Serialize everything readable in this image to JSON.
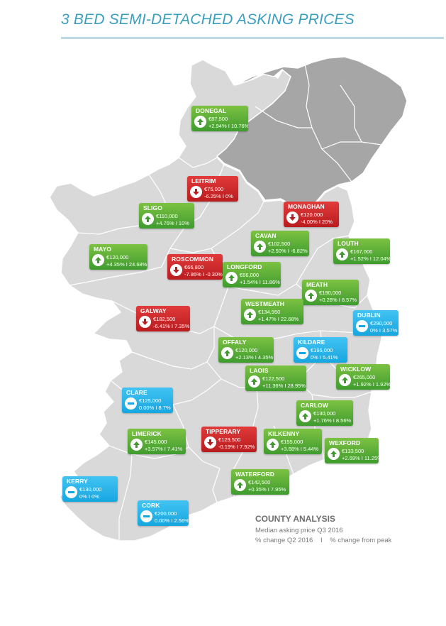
{
  "title": "3 BED SEMI-DETACHED ASKING PRICES",
  "legend": {
    "heading": "COUNTY ANALYSIS",
    "line1": "Median asking price Q3 2016",
    "line2a": "% change Q2 2016",
    "separator": "I",
    "line2b": "% change from peak"
  },
  "colors": {
    "increase": "#3f9b2f",
    "decrease": "#b91c1f",
    "no_change": "#17a6e0",
    "republic": "#d9d9d9",
    "northern_ireland": "#a6a6a6",
    "title": "#3a9fbf"
  },
  "icons": {
    "increase": "arrow-up-icon",
    "decrease": "arrow-down-icon",
    "no_change": "dash-icon"
  },
  "counties": [
    {
      "name": "DONEGAL",
      "price": "€87,500",
      "change": "+2.94% I 10.76%",
      "trend": "up"
    },
    {
      "name": "LEITRIM",
      "price": "€75,000",
      "change": "-6.25% I 0%",
      "trend": "down"
    },
    {
      "name": "SLIGO",
      "price": "€110,000",
      "change": "+4.76% I 10%",
      "trend": "up"
    },
    {
      "name": "MONAGHAN",
      "price": "€120,000",
      "change": "-4.00% I 20%",
      "trend": "down"
    },
    {
      "name": "CAVAN",
      "price": "€102,500",
      "change": "+2.50% I -6.82%",
      "trend": "up"
    },
    {
      "name": "LOUTH",
      "price": "€167,000",
      "change": "+1.52% I 12.04%",
      "trend": "up"
    },
    {
      "name": "MAYO",
      "price": "€120,000",
      "change": "+4.35% I 24.68%",
      "trend": "up"
    },
    {
      "name": "ROSCOMMON",
      "price": "€66,800",
      "change": "-7.86% I -0.30%",
      "trend": "down"
    },
    {
      "name": "LONGFORD",
      "price": "€66,000",
      "change": "+1.54% I 11.86%",
      "trend": "up"
    },
    {
      "name": "MEATH",
      "price": "€190,000",
      "change": "+0.28% I 8.57%",
      "trend": "up"
    },
    {
      "name": "WESTMEATH",
      "price": "€134,950",
      "change": "+1.47% I 22.68%",
      "trend": "up"
    },
    {
      "name": "GALWAY",
      "price": "€182,500",
      "change": "-6.41% I 7.35%",
      "trend": "down"
    },
    {
      "name": "DUBLIN",
      "price": "€290,000",
      "change": "0% I 3.57%",
      "trend": "flat"
    },
    {
      "name": "KILDARE",
      "price": "€195,000",
      "change": "0% I 5.41%",
      "trend": "flat"
    },
    {
      "name": "OFFALY",
      "price": "€120,000",
      "change": "+2.13% I 4.35%",
      "trend": "up"
    },
    {
      "name": "LAOIS",
      "price": "€122,500",
      "change": "+11.36% I 28.95%",
      "trend": "up"
    },
    {
      "name": "WICKLOW",
      "price": "€265,000",
      "change": "+1.92% I 1.92%",
      "trend": "up"
    },
    {
      "name": "CLARE",
      "price": "€125,000",
      "change": "0.00% I 8.7%",
      "trend": "flat"
    },
    {
      "name": "CARLOW",
      "price": "€130,000",
      "change": "+1.76% I 8.56%",
      "trend": "up"
    },
    {
      "name": "LIMERICK",
      "price": "€145,000",
      "change": "+3.57% I 7.41%",
      "trend": "up"
    },
    {
      "name": "TIPPERARY",
      "price": "€129,500",
      "change": "-0.19% I 7.92%",
      "trend": "down"
    },
    {
      "name": "KILKENNY",
      "price": "€155,000",
      "change": "+3.68% I 5.44%",
      "trend": "up"
    },
    {
      "name": "WEXFORD",
      "price": "€133,500",
      "change": "+2.69% I 11.25%",
      "trend": "up"
    },
    {
      "name": "WATERFORD",
      "price": "€142,500",
      "change": "+0.35% I 7.95%",
      "trend": "up"
    },
    {
      "name": "KERRY",
      "price": "€130,000",
      "change": "0% I 0%",
      "trend": "flat"
    },
    {
      "name": "CORK",
      "price": "€200,000",
      "change": "0.00% I 2.56%",
      "trend": "flat"
    }
  ]
}
